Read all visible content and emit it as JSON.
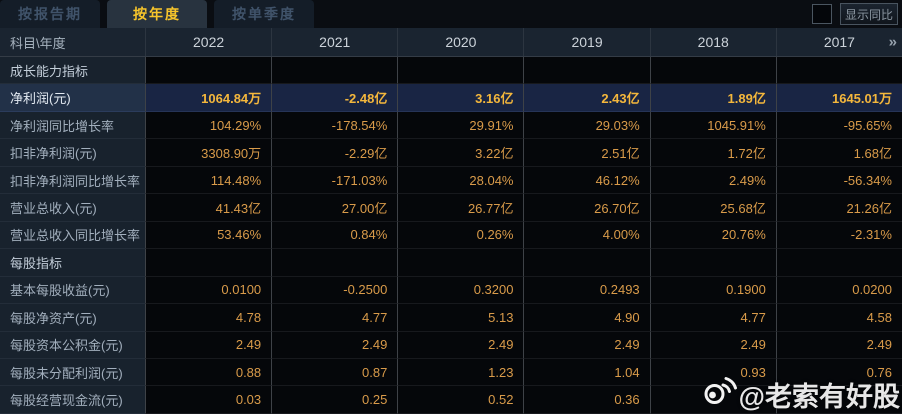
{
  "tabs": [
    {
      "label": "按报告期",
      "active": false
    },
    {
      "label": "按年度",
      "active": true
    },
    {
      "label": "按单季度",
      "active": false
    }
  ],
  "controls": {
    "show_yoy_label": "显示同比",
    "show_yoy_checked": false,
    "more_years_glyph": "»"
  },
  "table": {
    "corner_label": "科目\\年度",
    "years": [
      "2022",
      "2021",
      "2020",
      "2019",
      "2018",
      "2017"
    ],
    "rows": [
      {
        "type": "section",
        "label": "成长能力指标",
        "values": [
          "",
          "",
          "",
          "",
          "",
          ""
        ]
      },
      {
        "type": "data",
        "highlight": true,
        "label": "净利润(元)",
        "values": [
          "1064.84万",
          "-2.48亿",
          "3.16亿",
          "2.43亿",
          "1.89亿",
          "1645.01万"
        ]
      },
      {
        "type": "data",
        "label": "净利润同比增长率",
        "values": [
          "104.29%",
          "-178.54%",
          "29.91%",
          "29.03%",
          "1045.91%",
          "-95.65%"
        ]
      },
      {
        "type": "data",
        "label": "扣非净利润(元)",
        "values": [
          "3308.90万",
          "-2.29亿",
          "3.22亿",
          "2.51亿",
          "1.72亿",
          "1.68亿"
        ]
      },
      {
        "type": "data",
        "label": "扣非净利润同比增长率",
        "values": [
          "114.48%",
          "-171.03%",
          "28.04%",
          "46.12%",
          "2.49%",
          "-56.34%"
        ]
      },
      {
        "type": "data",
        "label": "营业总收入(元)",
        "values": [
          "41.43亿",
          "27.00亿",
          "26.77亿",
          "26.70亿",
          "25.68亿",
          "21.26亿"
        ]
      },
      {
        "type": "data",
        "label": "营业总收入同比增长率",
        "values": [
          "53.46%",
          "0.84%",
          "0.26%",
          "4.00%",
          "20.76%",
          "-2.31%"
        ]
      },
      {
        "type": "section",
        "label": "每股指标",
        "values": [
          "",
          "",
          "",
          "",
          "",
          ""
        ]
      },
      {
        "type": "data",
        "label": "基本每股收益(元)",
        "values": [
          "0.0100",
          "-0.2500",
          "0.3200",
          "0.2493",
          "0.1900",
          "0.0200"
        ]
      },
      {
        "type": "data",
        "label": "每股净资产(元)",
        "values": [
          "4.78",
          "4.77",
          "5.13",
          "4.90",
          "4.77",
          "4.58"
        ]
      },
      {
        "type": "data",
        "label": "每股资本公积金(元)",
        "values": [
          "2.49",
          "2.49",
          "2.49",
          "2.49",
          "2.49",
          "2.49"
        ]
      },
      {
        "type": "data",
        "label": "每股未分配利润(元)",
        "values": [
          "0.88",
          "0.87",
          "1.23",
          "1.04",
          "0.93",
          "0.76"
        ]
      },
      {
        "type": "data",
        "label": "每股经营现金流(元)",
        "values": [
          "0.03",
          "0.25",
          "0.52",
          "0.36",
          "",
          ""
        ]
      }
    ]
  },
  "watermark": {
    "handle": "@老索有好股"
  },
  "colors": {
    "accent_gold": "#f7c52b",
    "value_orange": "#d99b4a",
    "highlight_row_bg": "#192544",
    "label_column_bg": "#18222d",
    "data_cell_bg": "#05070a",
    "header_bg": "#1a2430"
  }
}
